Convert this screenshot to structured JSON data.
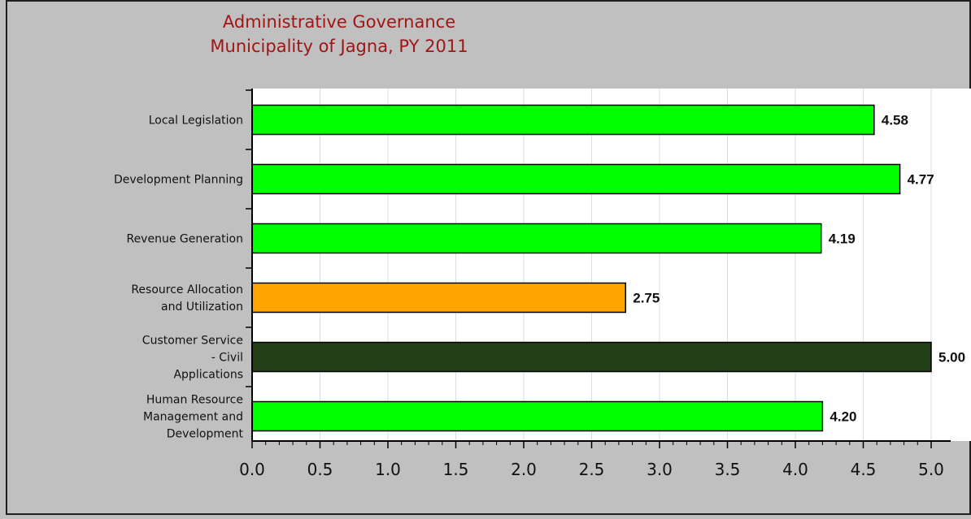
{
  "chart_data": {
    "type": "bar",
    "orientation": "horizontal",
    "title": [
      "Administrative Governance",
      "Municipality of Jagna, PY 2011"
    ],
    "categories": [
      [
        "Local Legislation"
      ],
      [
        "Development Planning"
      ],
      [
        "Revenue Generation"
      ],
      [
        "Resource Allocation",
        "and Utilization"
      ],
      [
        "Customer Service",
        "- Civil",
        "Applications"
      ],
      [
        "Human Resource",
        "Management and",
        "Development"
      ]
    ],
    "values": [
      4.58,
      4.77,
      4.19,
      2.75,
      5.0,
      4.2
    ],
    "value_labels": [
      "4.58",
      "4.77",
      "4.19",
      "2.75",
      "5.00",
      "4.20"
    ],
    "bar_colors": [
      "#00ff00",
      "#00ff00",
      "#00ff00",
      "#ffa500",
      "#233f17",
      "#00ff00"
    ],
    "xlim": [
      0,
      5.1
    ],
    "x_ticks": [
      "0.0",
      "0.5",
      "1.0",
      "1.5",
      "2.0",
      "2.5",
      "3.0",
      "3.5",
      "4.0",
      "4.5",
      "5.0"
    ],
    "x_tick_values": [
      0,
      0.5,
      1.0,
      1.5,
      2.0,
      2.5,
      3.0,
      3.5,
      4.0,
      4.5,
      5.0
    ],
    "xlabel": "",
    "ylabel": "",
    "grid": "vertical",
    "legend": "none",
    "colors": {
      "page_background": "#c0c0c0",
      "plot_background": "#ffffff",
      "title": "#a01515",
      "grid": "#dddddd",
      "axis": "#000000"
    }
  }
}
